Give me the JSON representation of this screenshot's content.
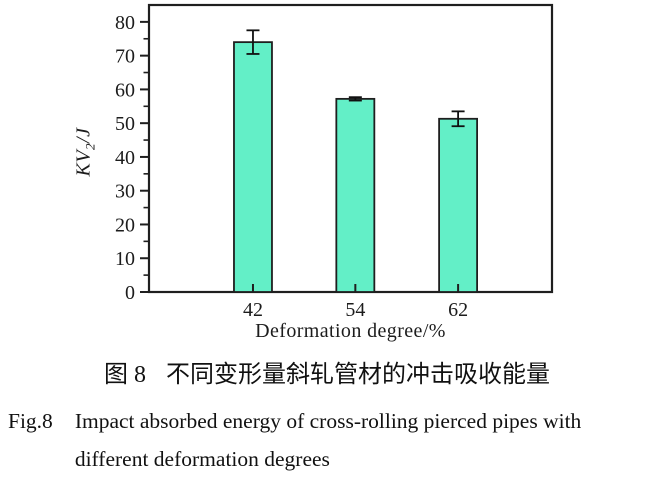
{
  "figure": {
    "caption_zh": {
      "label": "图 8",
      "text": "不同变形量斜轧管材的冲击吸收能量"
    },
    "caption_en": {
      "label": "Fig.8",
      "line1": "Impact absorbed energy of cross-rolling pierced pipes with",
      "line2": "different deformation degrees"
    }
  },
  "chart_data": {
    "type": "bar",
    "categories": [
      "42",
      "54",
      "62"
    ],
    "values": [
      74,
      57.2,
      51.3
    ],
    "errors": [
      3.5,
      0.5,
      2.2
    ],
    "title": "",
    "xlabel": "Deformation degree/%",
    "ylabel": "KV2/J",
    "ylabel_parts": {
      "main": "KV",
      "sub": "2",
      "unit": "/J"
    },
    "ylim": [
      0,
      85
    ],
    "yticks": [
      0,
      10,
      20,
      30,
      40,
      50,
      60,
      70,
      80
    ],
    "ytick_minor_step": 5,
    "grid": false,
    "legend": null,
    "bar_color": "#63efc7",
    "bar_border": "#1f1f1f",
    "error_bar_color": "#111111",
    "axis_color": "#1f1f1f",
    "tick_style": {
      "y": "outward",
      "x": "inward"
    }
  }
}
